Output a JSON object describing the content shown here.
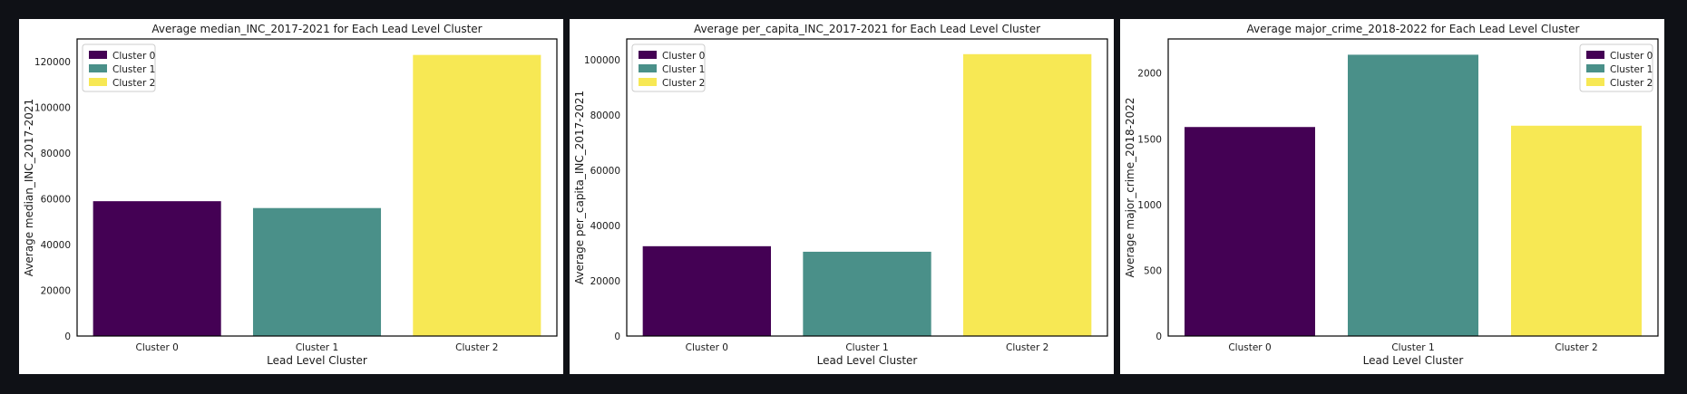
{
  "chart_data": [
    {
      "type": "bar",
      "title": "Average median_INC_2017-2021 for Each Lead Level Cluster",
      "xlabel": "Lead Level Cluster",
      "ylabel": "Average median_INC_2017-2021",
      "categories": [
        "Cluster 0",
        "Cluster 1",
        "Cluster 2"
      ],
      "values": [
        59000,
        56000,
        123000
      ],
      "colors": [
        "#440154",
        "#4a9089",
        "#f7e854"
      ],
      "ylim": [
        0,
        130000
      ],
      "yticks": [
        0,
        20000,
        40000,
        60000,
        80000,
        100000,
        120000
      ],
      "legend": {
        "placement": "top-left",
        "entries": [
          "Cluster 0",
          "Cluster 1",
          "Cluster 2"
        ]
      },
      "grid": false
    },
    {
      "type": "bar",
      "title": "Average per_capita_INC_2017-2021 for Each Lead Level Cluster",
      "xlabel": "Lead Level Cluster",
      "ylabel": "Average per_capita_INC_2017-2021",
      "categories": [
        "Cluster 0",
        "Cluster 1",
        "Cluster 2"
      ],
      "values": [
        32500,
        30500,
        102000
      ],
      "colors": [
        "#440154",
        "#4a9089",
        "#f7e854"
      ],
      "ylim": [
        0,
        107500
      ],
      "yticks": [
        0,
        20000,
        40000,
        60000,
        80000,
        100000
      ],
      "legend": {
        "placement": "top-left",
        "entries": [
          "Cluster 0",
          "Cluster 1",
          "Cluster 2"
        ]
      },
      "grid": false
    },
    {
      "type": "bar",
      "title": "Average major_crime_2018-2022 for Each Lead Level Cluster",
      "xlabel": "Lead Level Cluster",
      "ylabel": "Average major_crime_2018-2022",
      "categories": [
        "Cluster 0",
        "Cluster 1",
        "Cluster 2"
      ],
      "values": [
        1590,
        2140,
        1600
      ],
      "colors": [
        "#440154",
        "#4a9089",
        "#f7e854"
      ],
      "ylim": [
        0,
        2260
      ],
      "yticks": [
        0,
        500,
        1000,
        1500,
        2000
      ],
      "legend": {
        "placement": "top-right",
        "entries": [
          "Cluster 0",
          "Cluster 1",
          "Cluster 2"
        ]
      },
      "grid": false
    }
  ]
}
